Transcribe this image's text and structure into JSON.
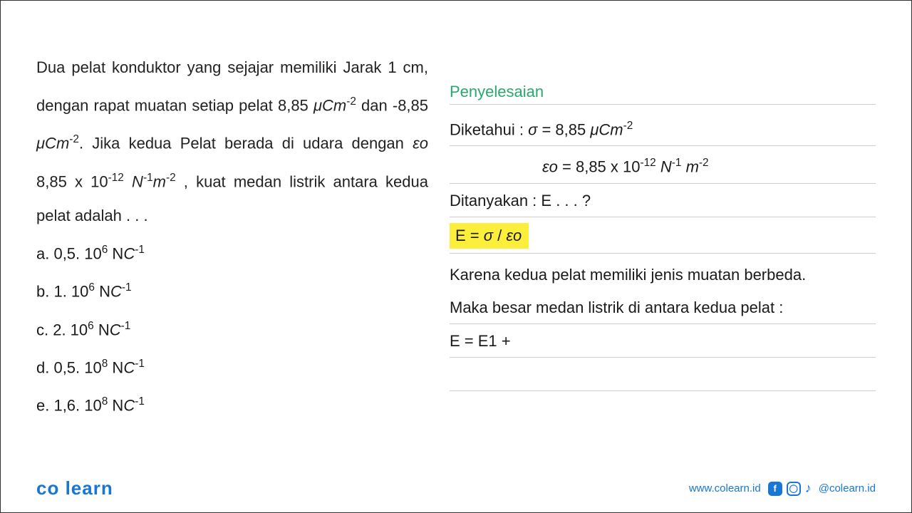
{
  "problem": {
    "text_html": "Dua pelat konduktor yang sejajar memiliki Jarak 1 cm, dengan rapat muatan setiap pelat 8,85 <span class='ital'>μCm</span><sup>-2</sup> dan -8,85 <span class='ital'>μCm</span><sup>-2</sup>. Jika kedua Pelat berada di udara dengan <span class='ital'>εo</span> 8,85 x 10<sup>-12</sup> <span class='ital'>N</span><sup>-1</sup><span class='ital'>m</span><sup>-2</sup> , kuat medan listrik antara kedua pelat adalah . . .",
    "options": [
      "a. 0,5. 10<sup>6</sup>  N<span class='ital'>C</span><sup>-1</sup>",
      "b. 1. 10<sup>6</sup>  N<span class='ital'>C</span><sup>-1</sup>",
      "c. 2. 10<sup>6</sup>  N<span class='ital'>C</span><sup>-1</sup>",
      "d. 0,5. 10<sup>8</sup>  N<span class='ital'>C</span><sup>-1</sup>",
      "e. 1,6. 10<sup>8</sup>  N<span class='ital'>C</span><sup>-1</sup>"
    ]
  },
  "solution": {
    "title": "Penyelesaian",
    "given_label": "Diketahui :  <span class='ital'>σ</span> = 8,85 <span class='ital'>μCm</span><sup>-2</sup>",
    "eps_line": "<span class='ital'>εo</span> = 8,85 x 10<sup>-12</sup> <span class='ital'>N</span><sup>-1</sup> <span class='ital'>m</span><sup>-2</sup>",
    "asked": "Ditanyakan : E . . . ?",
    "formula": "E = <span class='ital'>σ</span> / <span class='ital'>εo</span>",
    "expl1": "Karena kedua pelat memiliki jenis muatan berbeda.",
    "expl2": "Maka besar medan listrik di antara kedua pelat :",
    "eq": "E = E1 +"
  },
  "footer": {
    "logo": "co learn",
    "url": "www.colearn.id",
    "handle": "@colearn.id"
  },
  "colors": {
    "accent_green": "#2aa86f",
    "highlight": "#fcef3c",
    "brand_blue": "#1976d2",
    "text": "#1a1a1a",
    "rule": "#cccccc",
    "bg": "#ffffff"
  }
}
